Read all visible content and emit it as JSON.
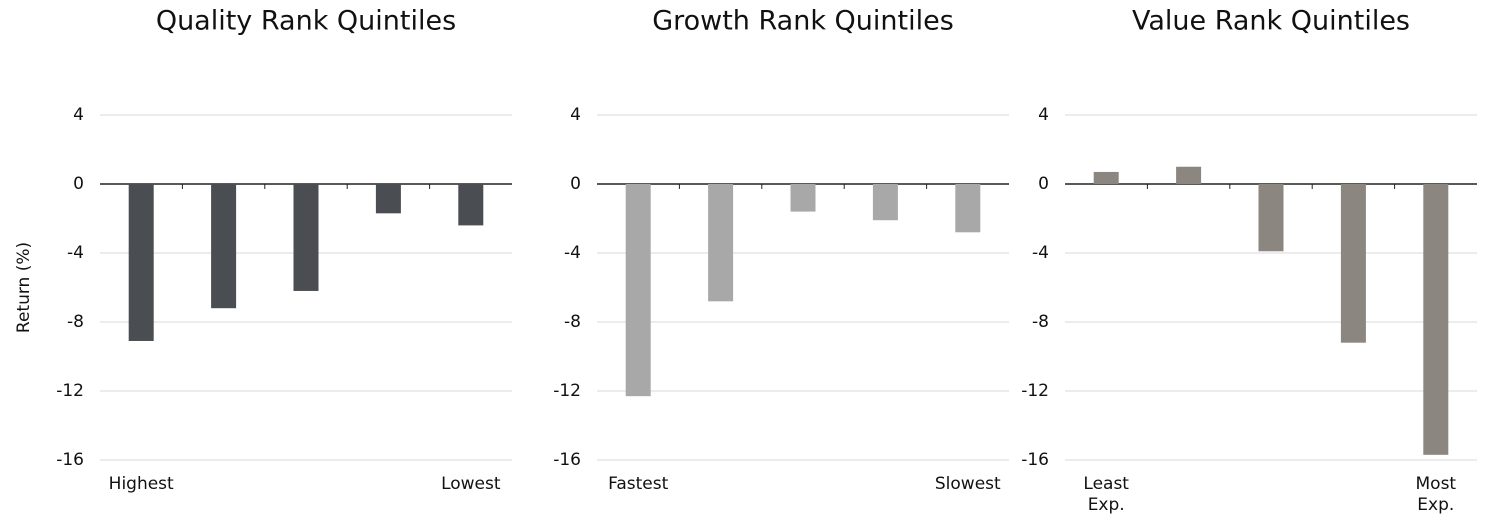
{
  "chart_data": [
    {
      "type": "bar",
      "title": "Quality Rank Quintiles",
      "ylabel": "Return (%)",
      "categories": [
        "Highest",
        null,
        null,
        null,
        "Lowest"
      ],
      "values": [
        -9.1,
        -7.2,
        -6.2,
        -1.7,
        -2.4
      ],
      "color": "#4a4d52",
      "ylim": [
        -16,
        4
      ],
      "yticks": [
        -16,
        -12,
        -8,
        -4,
        0,
        4
      ],
      "grid": true
    },
    {
      "type": "bar",
      "title": "Growth Rank Quintiles",
      "categories": [
        "Fastest",
        null,
        null,
        null,
        "Slowest"
      ],
      "values": [
        -12.3,
        -6.8,
        -1.6,
        -2.1,
        -2.8
      ],
      "color": "#a8a8a8",
      "ylim": [
        -16,
        4
      ],
      "yticks": [
        -16,
        -12,
        -8,
        -4,
        0,
        4
      ],
      "grid": true
    },
    {
      "type": "bar",
      "title": "Value Rank Quintiles",
      "categories": [
        "Least Exp.",
        null,
        null,
        null,
        "Most Exp."
      ],
      "values": [
        0.7,
        1.0,
        -3.9,
        -9.2,
        -15.7
      ],
      "color": "#8b8680",
      "ylim": [
        -16,
        4
      ],
      "yticks": [
        -16,
        -12,
        -8,
        -4,
        0,
        4
      ],
      "grid": true
    }
  ]
}
